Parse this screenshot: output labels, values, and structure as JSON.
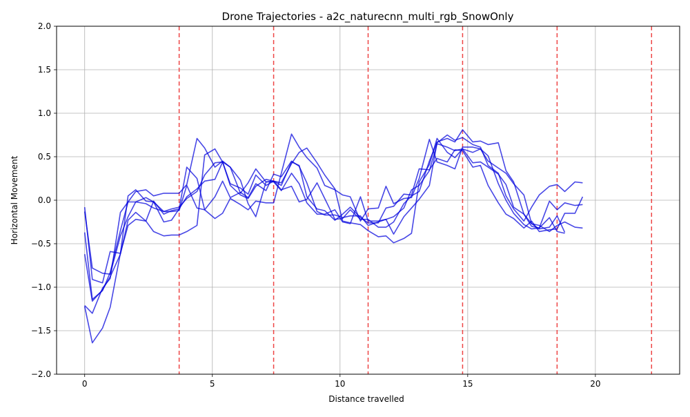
{
  "chart_data": {
    "type": "line",
    "title": "Drone Trajectories - a2c_naturecnn_multi_rgb_SnowOnly",
    "xlabel": "Distance travelled",
    "ylabel": "Horizontal Movement",
    "xlim": [
      -1.1,
      23.3
    ],
    "ylim": [
      -2.0,
      2.0
    ],
    "xticks": [
      0,
      5,
      10,
      15,
      20
    ],
    "yticks": [
      -2.0,
      -1.5,
      -1.0,
      -0.5,
      0.0,
      0.5,
      1.0,
      1.5,
      2.0
    ],
    "xtick_labels": [
      "0",
      "5",
      "10",
      "15",
      "20"
    ],
    "ytick_labels": [
      "−2.0",
      "−1.5",
      "−1.0",
      "−0.5",
      "0.0",
      "0.5",
      "1.0",
      "1.5",
      "2.0"
    ],
    "grid": true,
    "line_color": "#0000dd",
    "vline_color": "#ee4444",
    "vlines": [
      3.7,
      7.4,
      11.1,
      14.8,
      18.5,
      22.2
    ],
    "series": [
      {
        "x": [
          0,
          0.3,
          0.7,
          1.0,
          1.4,
          1.7,
          2.0,
          2.4,
          2.7,
          3.1,
          3.4,
          3.7,
          4.0,
          4.4,
          4.7,
          5.1,
          5.4,
          5.7,
          6.1,
          6.4,
          6.7,
          7.1,
          7.4,
          7.7,
          8.1,
          8.4,
          8.7,
          9.1,
          9.4,
          9.8,
          10.1,
          10.4,
          10.8,
          11.1,
          11.5,
          11.8,
          12.1,
          12.5,
          12.8,
          13.1,
          13.5,
          13.8,
          14.2,
          14.5,
          14.8,
          15.2,
          15.5,
          15.8,
          16.2,
          16.5,
          16.8,
          17.2,
          17.5,
          17.8,
          18.2,
          18.5,
          18.8,
          19.2,
          19.5
        ],
        "y": [
          -0.08,
          -0.91,
          -0.95,
          -0.59,
          -0.61,
          0.05,
          0.12,
          -0.01,
          -0.02,
          -0.25,
          -0.23,
          -0.1,
          0.38,
          0.25,
          -0.11,
          0.04,
          0.22,
          0.03,
          0.09,
          0.03,
          0.19,
          0.11,
          0.3,
          0.27,
          0.45,
          0.39,
          0.2,
          -0.13,
          -0.17,
          -0.17,
          -0.2,
          -0.18,
          -0.18,
          -0.29,
          -0.25,
          -0.22,
          -0.19,
          -0.09,
          0.12,
          0.17,
          0.34,
          0.65,
          0.61,
          0.57,
          0.59,
          0.43,
          0.44,
          0.38,
          0.3,
          0.18,
          -0.08,
          -0.16,
          -0.3,
          -0.32,
          -0.01,
          -0.11,
          -0.03,
          -0.06,
          -0.05
        ]
      },
      {
        "x": [
          0,
          0.3,
          0.7,
          1.0,
          1.4,
          1.7,
          2.0,
          2.4,
          2.7,
          3.1,
          3.4,
          3.7,
          4.0,
          4.4,
          4.7,
          5.1,
          5.4,
          5.7,
          6.1,
          6.4,
          6.7,
          7.1,
          7.4,
          7.7,
          8.1,
          8.4,
          8.7,
          9.1,
          9.4,
          9.8,
          10.1,
          10.4,
          10.8,
          11.1,
          11.5,
          11.8,
          12.1,
          12.5,
          12.8,
          13.1,
          13.5,
          13.8,
          14.2,
          14.5,
          14.8,
          15.2,
          15.5,
          15.8,
          16.2,
          16.5,
          16.8,
          17.2,
          17.5,
          17.8,
          18.2,
          18.5,
          18.8,
          19.2,
          19.5
        ],
        "y": [
          -0.62,
          -1.16,
          -1.03,
          -0.88,
          -0.62,
          -0.23,
          -0.14,
          -0.24,
          -0.01,
          -0.16,
          -0.12,
          -0.1,
          0.04,
          0.13,
          0.22,
          0.24,
          0.44,
          0.38,
          0.08,
          0.2,
          0.36,
          0.21,
          0.22,
          0.12,
          0.16,
          -0.02,
          0.01,
          0.2,
          0.02,
          -0.22,
          -0.21,
          -0.11,
          -0.22,
          -0.22,
          -0.31,
          -0.31,
          -0.25,
          -0.04,
          0.05,
          0.1,
          0.45,
          0.67,
          0.71,
          0.67,
          0.81,
          0.67,
          0.68,
          0.64,
          0.66,
          0.34,
          0.21,
          -0.16,
          -0.27,
          -0.29,
          -0.36,
          -0.29,
          -0.25,
          -0.31,
          -0.32
        ]
      },
      {
        "x": [
          0,
          0.3,
          0.7,
          1.0,
          1.4,
          1.7,
          2.0,
          2.4,
          2.7,
          3.1,
          3.4,
          3.7,
          4.0,
          4.4,
          4.7,
          5.1,
          5.4,
          5.7,
          6.1,
          6.4,
          6.7,
          7.1,
          7.4,
          7.7,
          8.1,
          8.4,
          8.7,
          9.1,
          9.4,
          9.8,
          10.1,
          10.4,
          10.8,
          11.1,
          11.5,
          11.8,
          12.1,
          12.5,
          12.8,
          13.1,
          13.5,
          13.8,
          14.2,
          14.5,
          14.8,
          15.2,
          15.5,
          15.8,
          16.2,
          16.5,
          16.8,
          17.2,
          17.5,
          17.8,
          18.2,
          18.5,
          18.8
        ],
        "y": [
          -1.22,
          -1.64,
          -1.47,
          -1.23,
          -0.61,
          -0.29,
          -0.22,
          -0.24,
          -0.36,
          -0.41,
          -0.4,
          -0.4,
          -0.36,
          -0.29,
          0.52,
          0.59,
          0.44,
          0.19,
          0.14,
          0.07,
          0.29,
          0.17,
          0.22,
          0.2,
          0.42,
          0.55,
          0.6,
          0.43,
          0.29,
          0.13,
          -0.24,
          -0.26,
          -0.28,
          -0.35,
          -0.42,
          -0.41,
          -0.49,
          -0.44,
          -0.38,
          0.21,
          0.41,
          0.71,
          0.55,
          0.49,
          0.59,
          0.55,
          0.59,
          0.51,
          0.19,
          0.0,
          -0.15,
          -0.28,
          -0.33,
          -0.32,
          -0.2,
          -0.36,
          -0.38
        ]
      },
      {
        "x": [
          0,
          0.3,
          0.7,
          1.0,
          1.4,
          1.7,
          2.0,
          2.4,
          2.7,
          3.1,
          3.4,
          3.7,
          4.0,
          4.4,
          4.7,
          5.1,
          5.4,
          5.7,
          6.1,
          6.4,
          6.7,
          7.1,
          7.4,
          7.7,
          8.1,
          8.4,
          8.7,
          9.1,
          9.4,
          9.8,
          10.1,
          10.4,
          10.8,
          11.1,
          11.5,
          11.8,
          12.1,
          12.5,
          12.8,
          13.1,
          13.5,
          13.8,
          14.2,
          14.5,
          14.8,
          15.2,
          15.5,
          15.8,
          16.2,
          16.5,
          16.8,
          17.2,
          17.5,
          17.8,
          18.2,
          18.5,
          18.8
        ],
        "y": [
          -0.37,
          -1.14,
          -1.04,
          -0.83,
          -0.35,
          -0.02,
          -0.02,
          0.03,
          -0.02,
          -0.13,
          -0.13,
          -0.12,
          0.17,
          -0.09,
          -0.11,
          -0.21,
          -0.15,
          0.02,
          -0.05,
          -0.11,
          -0.01,
          -0.03,
          -0.03,
          0.31,
          0.76,
          0.61,
          0.49,
          0.37,
          0.17,
          0.12,
          0.06,
          0.04,
          -0.24,
          -0.1,
          -0.09,
          0.16,
          -0.04,
          0.02,
          0.03,
          0.25,
          0.7,
          0.44,
          0.4,
          0.36,
          0.61,
          0.61,
          0.59,
          0.45,
          0.37,
          0.31,
          0.19,
          0.06,
          -0.27,
          -0.33,
          -0.31,
          -0.18,
          -0.37
        ]
      },
      {
        "x": [
          0,
          0.3,
          0.7,
          1.0,
          1.4,
          1.7,
          2.0,
          2.4,
          2.7,
          3.1,
          3.4,
          3.7,
          4.0,
          4.4,
          4.7,
          5.1,
          5.4,
          5.7,
          6.1,
          6.4,
          6.7,
          7.1,
          7.4,
          7.7,
          8.1,
          8.4,
          8.7,
          9.1,
          9.4,
          9.8,
          10.1,
          10.4,
          10.8,
          11.1,
          11.5,
          11.8,
          12.1,
          12.5,
          12.8,
          13.1,
          13.5,
          13.8,
          14.2,
          14.5,
          14.8,
          15.2,
          15.5,
          15.8,
          16.2,
          16.5,
          16.8,
          17.2,
          17.5,
          17.8,
          18.2,
          18.5,
          18.8,
          19.2,
          19.5
        ],
        "y": [
          -1.21,
          -1.3,
          -1.01,
          -0.9,
          -0.14,
          -0.02,
          0.1,
          0.12,
          0.05,
          0.08,
          0.08,
          0.08,
          0.18,
          0.71,
          0.6,
          0.38,
          0.45,
          0.38,
          0.23,
          -0.04,
          -0.19,
          0.21,
          0.21,
          0.11,
          0.31,
          0.19,
          -0.03,
          -0.16,
          -0.16,
          -0.11,
          -0.25,
          -0.27,
          0.04,
          -0.24,
          -0.24,
          -0.22,
          -0.39,
          -0.19,
          -0.09,
          0.01,
          0.17,
          0.66,
          0.75,
          0.69,
          0.72,
          0.64,
          0.61,
          0.4,
          0.31,
          0.05,
          -0.1,
          -0.24,
          -0.08,
          0.06,
          0.16,
          0.18,
          0.1,
          0.21,
          0.2
        ]
      },
      {
        "x": [
          0,
          0.3,
          0.7,
          1.0,
          1.4,
          1.7,
          2.0,
          2.4,
          2.7,
          3.1,
          3.4,
          3.7,
          4.0,
          4.4,
          4.7,
          5.1,
          5.4,
          5.7,
          6.1,
          6.4,
          6.7,
          7.1,
          7.4,
          7.7,
          8.1,
          8.4,
          8.7,
          9.1,
          9.4,
          9.8,
          10.1,
          10.4,
          10.8,
          11.1,
          11.5,
          11.8,
          12.1,
          12.5,
          12.8,
          13.1,
          13.5,
          13.8,
          14.2,
          14.5,
          14.8,
          15.2,
          15.5,
          15.8,
          16.2,
          16.5,
          16.8,
          17.2,
          17.5,
          17.8,
          18.2,
          18.5,
          18.8,
          19.2,
          19.5
        ],
        "y": [
          -0.13,
          -0.78,
          -0.84,
          -0.85,
          -0.41,
          -0.19,
          -0.02,
          -0.04,
          -0.09,
          -0.13,
          -0.1,
          -0.08,
          0.02,
          0.1,
          0.29,
          0.43,
          0.44,
          0.17,
          0.06,
          0.02,
          0.16,
          0.24,
          0.22,
          0.17,
          0.44,
          0.4,
          0.04,
          -0.1,
          -0.12,
          -0.23,
          -0.16,
          -0.08,
          -0.2,
          -0.26,
          -0.26,
          -0.09,
          -0.07,
          0.07,
          0.06,
          0.36,
          0.35,
          0.48,
          0.44,
          0.58,
          0.57,
          0.38,
          0.4,
          0.17,
          -0.03,
          -0.16,
          -0.21,
          -0.32,
          -0.24,
          -0.36,
          -0.34,
          -0.33,
          -0.15,
          -0.15,
          0.04
        ]
      }
    ]
  }
}
